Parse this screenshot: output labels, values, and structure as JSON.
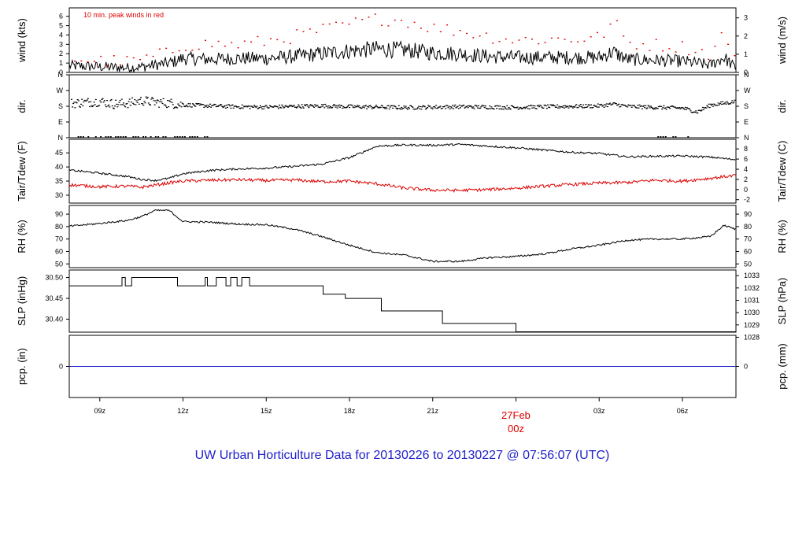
{
  "title": "UW Urban Horticulture Data for 20130226  to  20130227 @ 07:56:07  (UTC)",
  "colors": {
    "frame": "#000000",
    "red": "#dd0000",
    "blue": "#1f1fcc",
    "title": "#1f1fcc"
  },
  "chart_data": {
    "type": "line",
    "x_axis": {
      "ticks": [
        "09z",
        "12z",
        "15z",
        "18z",
        "21z",
        "03z",
        "06z"
      ],
      "tick_hours": [
        9,
        12,
        15,
        18,
        21,
        27,
        30
      ],
      "date_label": "27Feb",
      "date_sublabel": "00z",
      "date_hour": 24,
      "range_hours": [
        7.9,
        31.93
      ]
    },
    "panels": [
      {
        "id": "wind",
        "ylabel_left": "wind (kts)",
        "ylabel_right": "wind (m/s)",
        "annotation": "10 min. peak winds in red",
        "left_ticks": [
          "0",
          "1",
          "2",
          "3",
          "4",
          "5",
          "6"
        ],
        "right_ticks": [
          "0",
          "1",
          "2",
          "3"
        ],
        "ylim": [
          0,
          6.9
        ],
        "series": [
          {
            "color": "black",
            "style": "line",
            "x": [
              8,
              9,
              10,
              10.5,
              11,
              11.5,
              12,
              13,
              14,
              15,
              16,
              17,
              18,
              19,
              20,
              21,
              22,
              23,
              24,
              25,
              26,
              27,
              27.5,
              28,
              29,
              30,
              31,
              31.5,
              31.9
            ],
            "y": [
              0.7,
              0.6,
              0.5,
              0.6,
              0.8,
              1.0,
              1.5,
              1.4,
              1.5,
              1.5,
              1.7,
              2.0,
              2.3,
              2.5,
              2.4,
              2.1,
              2.0,
              1.7,
              1.6,
              1.6,
              1.6,
              1.6,
              2.2,
              1.4,
              1.3,
              1.2,
              0.8,
              1.6,
              0.5
            ]
          },
          {
            "color": "red",
            "style": "points",
            "x": [
              8,
              9,
              10,
              10.5,
              11,
              11.5,
              12,
              13,
              14,
              15,
              16,
              17,
              18,
              19,
              20,
              21,
              22,
              23,
              24,
              25,
              26,
              27,
              27.5,
              28,
              29,
              30,
              31,
              31.5,
              31.9
            ],
            "y": [
              1.5,
              1.3,
              1.2,
              1.4,
              1.8,
              2.2,
              3.0,
              3.1,
              3.0,
              3.4,
              3.9,
              4.6,
              5.2,
              5.8,
              5.6,
              4.8,
              4.5,
              3.9,
              3.5,
              3.6,
              3.6,
              3.8,
              5.5,
              3.2,
              3.0,
              2.8,
              2.0,
              4.5,
              1.2
            ]
          }
        ]
      },
      {
        "id": "dir",
        "ylabel_left": "dir.",
        "ylabel_right": "dir.",
        "left_ticks": [
          "N",
          "E",
          "S",
          "W",
          "N"
        ],
        "right_ticks": [
          "N",
          "E",
          "S",
          "W",
          "N"
        ],
        "ylim_deg": [
          0,
          360
        ],
        "series": [
          {
            "color": "black",
            "style": "points",
            "x": [
              8,
              9,
              9.5,
              10,
              10.5,
              11,
              11.5,
              12,
              13,
              14,
              15,
              16,
              17,
              18,
              19,
              20,
              21,
              22,
              23,
              24,
              25,
              26,
              27,
              27.5,
              28,
              29,
              30,
              30.5,
              31,
              31.5,
              31.9
            ],
            "y": [
              200,
              210,
              195,
              200,
              215,
              205,
              200,
              190,
              185,
              180,
              178,
              182,
              185,
              180,
              178,
              175,
              178,
              180,
              178,
              176,
              180,
              182,
              185,
              195,
              182,
              176,
              172,
              150,
              190,
              200,
              210
            ]
          }
        ]
      },
      {
        "id": "temp",
        "ylabel_left": "Tair/Tdew (F)",
        "ylabel_right": "Tair/Tdew (C)",
        "left_ticks": [
          "30",
          "35",
          "40",
          "45"
        ],
        "right_ticks": [
          "-2",
          "0",
          "2",
          "4",
          "6",
          "8"
        ],
        "ylim": [
          27.2,
          49.8
        ],
        "series": [
          {
            "color": "black",
            "style": "line",
            "x": [
              8,
              9,
              10,
              10.5,
              11,
              11.5,
              12,
              13,
              14,
              15,
              16,
              17,
              18,
              19,
              20,
              21,
              22,
              23,
              24,
              25,
              26,
              27,
              28,
              29,
              30,
              31,
              31.9
            ],
            "y": [
              38.8,
              37.8,
              36.6,
              35.6,
              35.2,
              36.0,
              37.6,
              38.8,
              39.3,
              39.6,
              40.2,
              41.0,
              43.3,
              47.4,
              47.8,
              47.7,
              48.0,
              47.4,
              46.8,
              46.0,
              45.2,
              44.8,
              43.6,
              43.8,
              43.9,
              43.5,
              42.6
            ]
          },
          {
            "color": "red",
            "style": "line",
            "x": [
              8,
              9,
              10,
              10.5,
              11,
              11.5,
              12,
              13,
              14,
              15,
              16,
              17,
              18,
              19,
              20,
              21,
              22,
              23,
              24,
              25,
              26,
              27,
              28,
              29,
              30,
              31,
              31.9
            ],
            "y": [
              33.6,
              33.0,
              33.2,
              32.8,
              33.6,
              34.4,
              35.0,
              35.3,
              35.5,
              35.2,
              35.4,
              34.8,
              35.0,
              34.0,
              32.5,
              31.8,
              31.7,
              32.0,
              32.5,
              33.2,
              33.8,
              34.3,
              34.5,
              35.3,
              35.0,
              36.0,
              37.0
            ]
          }
        ]
      },
      {
        "id": "rh",
        "ylabel_left": "RH (%)",
        "ylabel_right": "RH (%)",
        "left_ticks": [
          "50",
          "60",
          "70",
          "80",
          "90"
        ],
        "right_ticks": [
          "50",
          "60",
          "70",
          "80",
          "90"
        ],
        "ylim": [
          47,
          97
        ],
        "series": [
          {
            "color": "black",
            "style": "line",
            "x": [
              8,
              9,
              10,
              10.5,
              11,
              11.5,
              12,
              13,
              14,
              15,
              16,
              17,
              18,
              19,
              20,
              21,
              22,
              23,
              24,
              25,
              26,
              27,
              28,
              29,
              30,
              31,
              31.5,
              31.9
            ],
            "y": [
              80.5,
              82.5,
              85,
              88,
              93,
              93,
              84,
              83.5,
              82,
              81.5,
              78,
              72,
              65,
              59,
              57,
              52,
              52,
              55,
              56,
              58,
              62,
              65,
              69,
              70,
              70,
              72,
              81,
              78
            ]
          }
        ]
      },
      {
        "id": "slp",
        "ylabel_left": "SLP (inHg)",
        "ylabel_right": "SLP (hPa)",
        "left_ticks": [
          "30.40",
          "30.45",
          "30.50"
        ],
        "right_ticks": [
          "1028",
          "1029",
          "1030",
          "1031",
          "1032",
          "1033"
        ],
        "ylim": [
          30.369,
          30.518
        ],
        "series": [
          {
            "color": "black",
            "style": "step",
            "x": [
              7.9,
              9.8,
              9.92,
              10.15,
              11.8,
              12.8,
              12.88,
              13.2,
              13.55,
              13.72,
              13.95,
              14.12,
              14.4,
              17.05,
              17.85,
              19.15,
              21.35,
              24.0,
              31.93
            ],
            "y": [
              30.48,
              30.5,
              30.48,
              30.5,
              30.48,
              30.5,
              30.48,
              30.5,
              30.48,
              30.5,
              30.48,
              30.5,
              30.48,
              30.46,
              30.45,
              30.42,
              30.39,
              30.37,
              30.37
            ]
          }
        ]
      },
      {
        "id": "pcp",
        "ylabel_left": "pcp. (in)",
        "ylabel_right": "pcp. (mm)",
        "left_ticks": [
          "0"
        ],
        "right_ticks": [
          "0"
        ],
        "ylim": [
          -1,
          1
        ],
        "series": [
          {
            "color": "blue",
            "style": "line",
            "x": [
              7.9,
              31.93
            ],
            "y": [
              0,
              0
            ]
          }
        ]
      }
    ]
  }
}
